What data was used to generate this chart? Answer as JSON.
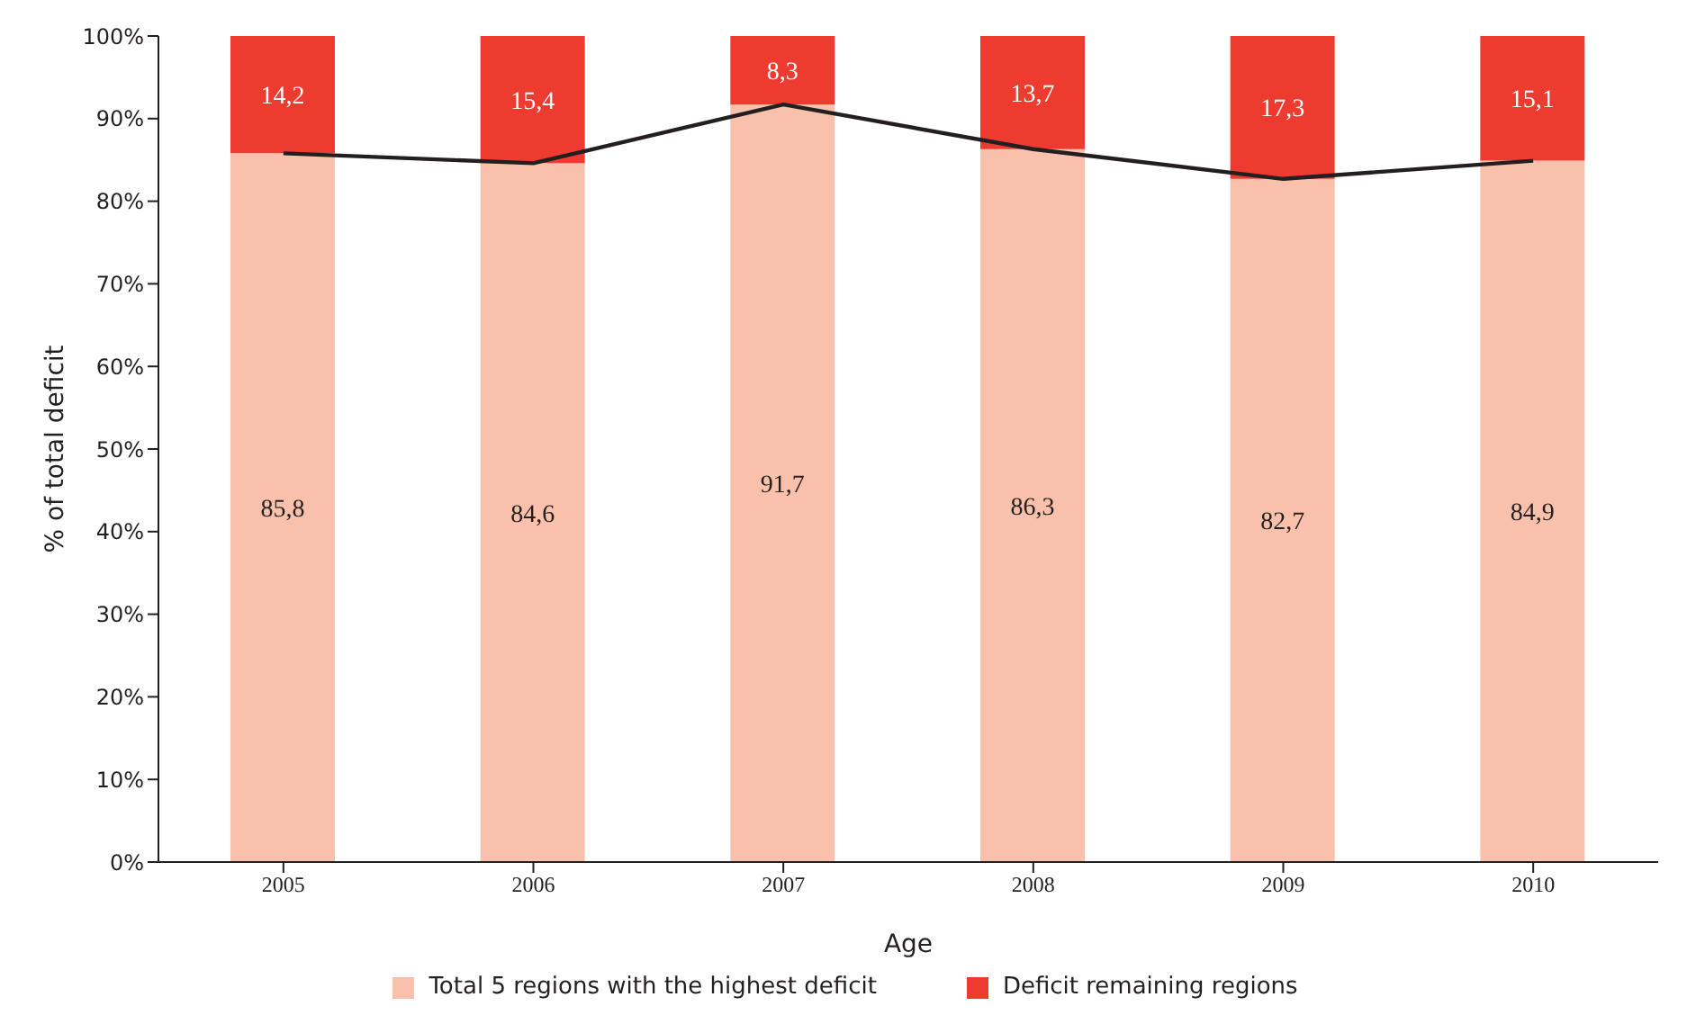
{
  "chart_data": {
    "type": "bar",
    "stacked": true,
    "xlabel": "Age",
    "ylabel": "% of total deficit",
    "categories": [
      "2005",
      "2006",
      "2007",
      "2008",
      "2009",
      "2010"
    ],
    "series": [
      {
        "name": "Total 5 regions with the highest deficit",
        "color": "#f9c1ab",
        "values": [
          85.8,
          84.6,
          91.7,
          86.3,
          82.7,
          84.9
        ],
        "value_labels": [
          "85,8",
          "84,6",
          "91,7",
          "86,3",
          "82,7",
          "84,9"
        ]
      },
      {
        "name": "Deficit remaining regions",
        "color": "#ee3b2f",
        "values": [
          14.2,
          15.4,
          8.3,
          13.7,
          17.3,
          15.1
        ],
        "value_labels": [
          "14,2",
          "15,4",
          "8,3",
          "13,7",
          "17,3",
          "15,1"
        ]
      },
      {
        "type": "line",
        "color": "#231f20",
        "values": [
          85.8,
          84.6,
          91.7,
          86.3,
          82.7,
          84.9
        ]
      }
    ],
    "ylim": [
      0,
      100
    ],
    "yticks": [
      {
        "value": 0,
        "label": "0%"
      },
      {
        "value": 10,
        "label": "10%"
      },
      {
        "value": 20,
        "label": "20%"
      },
      {
        "value": 30,
        "label": "30%"
      },
      {
        "value": 40,
        "label": "40%"
      },
      {
        "value": 50,
        "label": "50%"
      },
      {
        "value": 60,
        "label": "60%"
      },
      {
        "value": 70,
        "label": "70%"
      },
      {
        "value": 80,
        "label": "80%"
      },
      {
        "value": 90,
        "label": "90%"
      },
      {
        "value": 100,
        "label": "100%"
      }
    ],
    "grid": false,
    "legend": "bottom"
  }
}
